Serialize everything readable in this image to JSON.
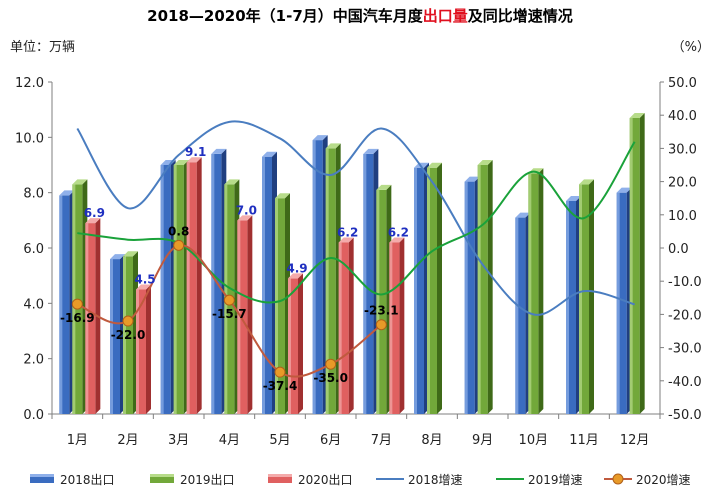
{
  "chart_data": {
    "type": "bar",
    "title_parts": [
      {
        "text": "2018—2020年（1-7月）中国汽车月度",
        "color": "#000000"
      },
      {
        "text": "出口量",
        "color": "#e0101f"
      },
      {
        "text": "及同比增速情况",
        "color": "#000000"
      }
    ],
    "left_unit": "单位：万辆",
    "right_unit": "（%）",
    "categories": [
      "1月",
      "2月",
      "3月",
      "4月",
      "5月",
      "6月",
      "7月",
      "8月",
      "9月",
      "10月",
      "11月",
      "12月"
    ],
    "left_axis": {
      "min": 0,
      "max": 12,
      "step": 2,
      "ticks": [
        "0.0",
        "2.0",
        "4.0",
        "6.0",
        "8.0",
        "10.0",
        "12.0"
      ]
    },
    "right_axis": {
      "min": -50,
      "max": 50,
      "step": 10,
      "ticks": [
        "-50.0",
        "-40.0",
        "-30.0",
        "-20.0",
        "-10.0",
        "0.0",
        "10.0",
        "20.0",
        "30.0",
        "40.0",
        "50.0"
      ]
    },
    "bar_series": [
      {
        "name": "2018出口",
        "color": "#3a6cc0",
        "dark": "#203f80",
        "light": "#8fb0ea",
        "values": [
          7.9,
          5.6,
          9.0,
          9.4,
          9.3,
          9.9,
          9.4,
          8.9,
          8.4,
          7.1,
          7.7,
          8.0
        ]
      },
      {
        "name": "2019出口",
        "color": "#72a83a",
        "dark": "#3f6a18",
        "light": "#b7dc8a",
        "values": [
          8.3,
          5.7,
          9.0,
          8.3,
          7.8,
          9.6,
          8.1,
          8.9,
          9.0,
          8.7,
          8.3,
          10.7
        ]
      },
      {
        "name": "2020出口",
        "color": "#e06060",
        "dark": "#a03030",
        "light": "#f4abab",
        "values": [
          6.9,
          4.5,
          9.1,
          7.0,
          4.9,
          6.2,
          6.2
        ],
        "labels": [
          "6.9",
          "4.5",
          "9.1",
          "7.0",
          "4.9",
          "6.2",
          "6.2"
        ]
      }
    ],
    "line_series": [
      {
        "name": "2018增速",
        "color": "#4a7dc0",
        "values": [
          36,
          12,
          28,
          38,
          33,
          22,
          36,
          20,
          -5,
          -20,
          -13,
          -17
        ]
      },
      {
        "name": "2019增速",
        "color": "#1aa23a",
        "values": [
          4.5,
          2.5,
          1.5,
          -12,
          -16,
          -3,
          -14,
          -1,
          7,
          23,
          9,
          32
        ]
      },
      {
        "name": "2020增速",
        "color": "#c05a3e",
        "marker": "#e89a28",
        "values": [
          -16.9,
          -22.0,
          0.8,
          -15.7,
          -37.4,
          -35.0,
          -23.1
        ],
        "labels": [
          "-16.9",
          "-22.0",
          "0.8",
          "-15.7",
          "-37.4",
          "-35.0",
          "-23.1"
        ]
      }
    ],
    "grid": false,
    "legend_position": "bottom"
  }
}
